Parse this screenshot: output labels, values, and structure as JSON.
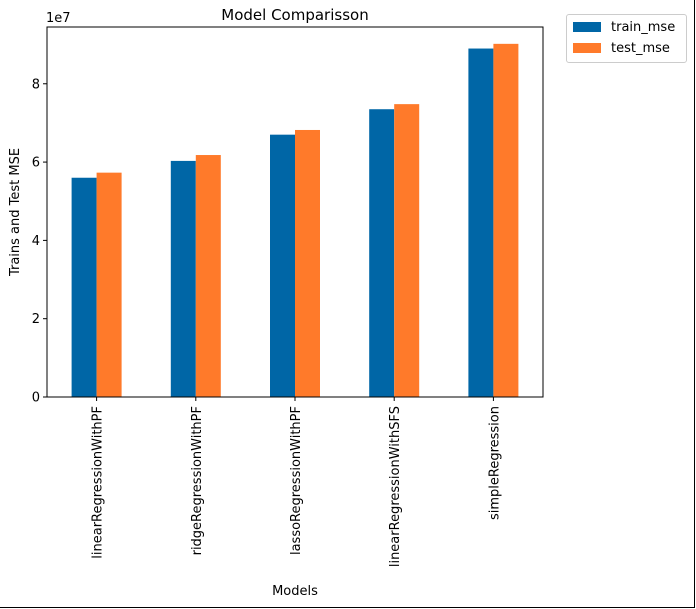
{
  "chart_data": {
    "type": "bar",
    "title": "Model Comparisson",
    "xlabel": "Models",
    "ylabel": "Trains and Test MSE",
    "y_scale_label": "1e7",
    "ylim": [
      0,
      9.45
    ],
    "yticks": [
      0,
      2,
      4,
      6,
      8
    ],
    "categories": [
      "linearRegressionWithPF",
      "ridgeRegressionWithPF",
      "lassoRegressionWithPF",
      "linearRegressionWithSFS",
      "simpleRegression"
    ],
    "series": [
      {
        "name": "train_mse",
        "color": "#0066a6",
        "values": [
          5.6,
          6.03,
          6.7,
          7.35,
          8.9
        ]
      },
      {
        "name": "test_mse",
        "color": "#ff7a2a",
        "values": [
          5.73,
          6.18,
          6.82,
          7.48,
          9.02
        ]
      }
    ],
    "legend_position": "outside top-right",
    "grid": false
  }
}
